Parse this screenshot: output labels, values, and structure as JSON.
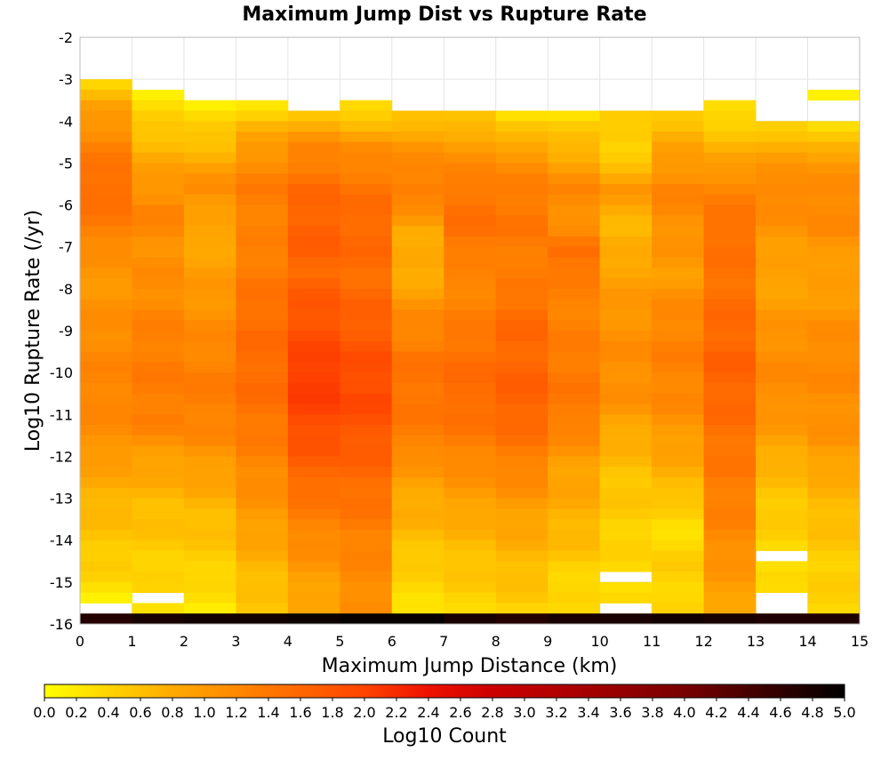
{
  "chart_data": {
    "type": "heatmap",
    "title": "Maximum Jump Dist vs Rupture Rate",
    "xlabel": "Maximum Jump Distance (km)",
    "ylabel": "Log10 Rupture Rate (/yr)",
    "colorbar_label": "Log10 Count",
    "xlim": [
      0,
      15
    ],
    "ylim": [
      -16,
      -2
    ],
    "x_ticks": [
      "0",
      "1",
      "2",
      "3",
      "4",
      "5",
      "6",
      "7",
      "8",
      "9",
      "10",
      "11",
      "12",
      "13",
      "14",
      "15"
    ],
    "y_ticks": [
      "-2",
      "-3",
      "-4",
      "-5",
      "-6",
      "-7",
      "-8",
      "-9",
      "-10",
      "-11",
      "-12",
      "-13",
      "-14",
      "-15",
      "-16"
    ],
    "colorbar_ticks": [
      "0.0",
      "0.2",
      "0.4",
      "0.6",
      "0.8",
      "1.0",
      "1.2",
      "1.4",
      "1.6",
      "1.8",
      "2.0",
      "2.2",
      "2.4",
      "2.6",
      "2.8",
      "3.0",
      "3.2",
      "3.4",
      "3.6",
      "3.8",
      "4.0",
      "4.2",
      "4.4",
      "4.6",
      "4.8",
      "5.0"
    ],
    "color_range": [
      0,
      5
    ],
    "grid": true,
    "x_bin_width": 1,
    "y_bin_height": 0.25,
    "profiles": [
      {
        "x": 0,
        "top": -3.0,
        "bottom": -15.25,
        "shape": [
          [
            -3.0,
            0.45
          ],
          [
            -3.5,
            0.85
          ],
          [
            -4.5,
            1.3
          ],
          [
            -5.5,
            1.55
          ],
          [
            -6.5,
            1.3
          ],
          [
            -7.5,
            1.0
          ],
          [
            -8.5,
            1.1
          ],
          [
            -9.5,
            1.2
          ],
          [
            -10.5,
            1.25
          ],
          [
            -11.5,
            1.1
          ],
          [
            -12.5,
            0.8
          ],
          [
            -13.5,
            0.6
          ],
          [
            -14.5,
            0.45
          ],
          [
            -15.25,
            0.2
          ]
        ]
      },
      {
        "x": 1,
        "top": -3.25,
        "bottom": -15.5,
        "shape": [
          [
            -3.25,
            0.2
          ],
          [
            -4.0,
            0.5
          ],
          [
            -5.0,
            0.9
          ],
          [
            -6.0,
            1.25
          ],
          [
            -7.0,
            1.1
          ],
          [
            -8.0,
            1.15
          ],
          [
            -9.0,
            1.3
          ],
          [
            -10.0,
            1.35
          ],
          [
            -11.0,
            1.3
          ],
          [
            -12.0,
            0.9
          ],
          [
            -13.0,
            0.65
          ],
          [
            -14.0,
            0.5
          ],
          [
            -15.0,
            0.35
          ],
          [
            -15.5,
            0.35
          ]
        ]
      },
      {
        "x": 2,
        "top": -3.5,
        "bottom": -15.75,
        "shape": [
          [
            -3.5,
            0.2
          ],
          [
            -4.5,
            0.65
          ],
          [
            -5.5,
            1.15
          ],
          [
            -6.5,
            0.8
          ],
          [
            -7.5,
            0.95
          ],
          [
            -8.5,
            1.1
          ],
          [
            -9.5,
            1.25
          ],
          [
            -10.5,
            1.35
          ],
          [
            -11.5,
            1.15
          ],
          [
            -12.5,
            0.85
          ],
          [
            -13.5,
            0.6
          ],
          [
            -14.5,
            0.45
          ],
          [
            -15.75,
            0.15
          ]
        ]
      },
      {
        "x": 3,
        "top": -3.5,
        "bottom": -15.75,
        "shape": [
          [
            -3.5,
            0.3
          ],
          [
            -4.5,
            1.0
          ],
          [
            -5.5,
            1.35
          ],
          [
            -6.5,
            1.25
          ],
          [
            -7.5,
            1.35
          ],
          [
            -8.5,
            1.5
          ],
          [
            -9.5,
            1.55
          ],
          [
            -10.5,
            1.5
          ],
          [
            -11.5,
            1.35
          ],
          [
            -12.5,
            1.15
          ],
          [
            -13.5,
            0.95
          ],
          [
            -14.5,
            0.7
          ],
          [
            -15.75,
            0.45
          ]
        ]
      },
      {
        "x": 4,
        "top": -3.75,
        "bottom": -15.75,
        "shape": [
          [
            -3.75,
            0.6
          ],
          [
            -4.5,
            1.2
          ],
          [
            -5.5,
            1.55
          ],
          [
            -6.5,
            1.7
          ],
          [
            -7.5,
            1.6
          ],
          [
            -8.5,
            1.8
          ],
          [
            -9.5,
            2.0
          ],
          [
            -10.0,
            2.1
          ],
          [
            -11.0,
            1.95
          ],
          [
            -12.0,
            1.7
          ],
          [
            -13.0,
            1.4
          ],
          [
            -14.0,
            1.15
          ],
          [
            -15.0,
            0.9
          ],
          [
            -15.75,
            0.75
          ]
        ]
      },
      {
        "x": 5,
        "top": -3.5,
        "bottom": -15.75,
        "shape": [
          [
            -3.5,
            0.3
          ],
          [
            -4.5,
            1.1
          ],
          [
            -5.5,
            1.45
          ],
          [
            -6.5,
            1.6
          ],
          [
            -7.5,
            1.5
          ],
          [
            -8.5,
            1.65
          ],
          [
            -9.5,
            1.85
          ],
          [
            -10.5,
            1.95
          ],
          [
            -11.5,
            1.75
          ],
          [
            -12.5,
            1.55
          ],
          [
            -13.5,
            1.35
          ],
          [
            -14.5,
            1.2
          ],
          [
            -15.75,
            1.1
          ]
        ]
      },
      {
        "x": 6,
        "top": -3.75,
        "bottom": -15.75,
        "shape": [
          [
            -3.75,
            0.55
          ],
          [
            -4.5,
            1.05
          ],
          [
            -5.5,
            1.35
          ],
          [
            -6.5,
            0.85
          ],
          [
            -7.5,
            0.75
          ],
          [
            -8.5,
            1.15
          ],
          [
            -9.5,
            1.4
          ],
          [
            -10.5,
            1.45
          ],
          [
            -11.5,
            1.3
          ],
          [
            -12.5,
            0.9
          ],
          [
            -13.5,
            0.7
          ],
          [
            -14.5,
            0.45
          ],
          [
            -15.75,
            0.25
          ]
        ]
      },
      {
        "x": 7,
        "top": -3.75,
        "bottom": -15.75,
        "shape": [
          [
            -3.75,
            0.5
          ],
          [
            -4.5,
            1.0
          ],
          [
            -5.5,
            1.4
          ],
          [
            -6.5,
            1.5
          ],
          [
            -7.5,
            1.2
          ],
          [
            -8.5,
            1.3
          ],
          [
            -9.5,
            1.5
          ],
          [
            -10.5,
            1.55
          ],
          [
            -11.5,
            1.35
          ],
          [
            -12.5,
            1.05
          ],
          [
            -13.5,
            0.75
          ],
          [
            -14.5,
            0.55
          ],
          [
            -15.75,
            0.35
          ]
        ]
      },
      {
        "x": 8,
        "top": -3.75,
        "bottom": -15.5,
        "shape": [
          [
            -3.75,
            0.25
          ],
          [
            -4.5,
            0.9
          ],
          [
            -5.5,
            1.35
          ],
          [
            -6.5,
            1.4
          ],
          [
            -7.5,
            1.3
          ],
          [
            -8.5,
            1.55
          ],
          [
            -9.5,
            1.6
          ],
          [
            -10.5,
            1.7
          ],
          [
            -11.5,
            1.45
          ],
          [
            -12.5,
            1.15
          ],
          [
            -13.5,
            0.85
          ],
          [
            -14.5,
            0.65
          ],
          [
            -15.5,
            0.45
          ]
        ]
      },
      {
        "x": 9,
        "top": -3.75,
        "bottom": -15.75,
        "shape": [
          [
            -3.75,
            0.3
          ],
          [
            -4.5,
            0.7
          ],
          [
            -5.5,
            1.2
          ],
          [
            -6.5,
            1.1
          ],
          [
            -7.0,
            1.55
          ],
          [
            -8.0,
            1.25
          ],
          [
            -9.0,
            1.3
          ],
          [
            -10.0,
            1.4
          ],
          [
            -11.0,
            1.35
          ],
          [
            -12.0,
            0.95
          ],
          [
            -13.0,
            0.8
          ],
          [
            -14.0,
            0.6
          ],
          [
            -15.0,
            0.35
          ],
          [
            -15.75,
            0.35
          ]
        ]
      },
      {
        "x": 10,
        "top": -3.75,
        "bottom": -15.75,
        "shape": [
          [
            -3.75,
            0.55
          ],
          [
            -4.5,
            0.35
          ],
          [
            -5.5,
            1.0
          ],
          [
            -6.5,
            0.65
          ],
          [
            -7.5,
            0.9
          ],
          [
            -8.5,
            1.05
          ],
          [
            -9.5,
            1.15
          ],
          [
            -10.5,
            1.1
          ],
          [
            -11.5,
            0.75
          ],
          [
            -12.5,
            0.55
          ],
          [
            -13.5,
            0.45
          ],
          [
            -14.5,
            0.35
          ],
          [
            -15.75,
            0.3
          ]
        ]
      },
      {
        "x": 11,
        "top": -3.75,
        "bottom": -15.75,
        "shape": [
          [
            -3.75,
            0.55
          ],
          [
            -4.5,
            0.85
          ],
          [
            -5.5,
            1.25
          ],
          [
            -6.5,
            1.1
          ],
          [
            -7.5,
            0.95
          ],
          [
            -8.5,
            1.2
          ],
          [
            -9.5,
            1.3
          ],
          [
            -10.5,
            1.2
          ],
          [
            -11.5,
            0.95
          ],
          [
            -12.5,
            0.7
          ],
          [
            -13.5,
            0.3
          ],
          [
            -14.5,
            0.45
          ],
          [
            -15.75,
            0.35
          ]
        ]
      },
      {
        "x": 12,
        "top": -3.5,
        "bottom": -15.5,
        "shape": [
          [
            -3.5,
            0.25
          ],
          [
            -4.5,
            0.7
          ],
          [
            -5.5,
            1.25
          ],
          [
            -6.5,
            1.5
          ],
          [
            -7.5,
            1.45
          ],
          [
            -8.5,
            1.55
          ],
          [
            -9.5,
            1.65
          ],
          [
            -10.5,
            1.6
          ],
          [
            -11.5,
            1.45
          ],
          [
            -12.5,
            1.35
          ],
          [
            -13.5,
            1.25
          ],
          [
            -14.5,
            1.05
          ],
          [
            -15.5,
            0.85
          ]
        ]
      },
      {
        "x": 13,
        "top": -4.0,
        "bottom": -15.75,
        "shape": [
          [
            -4.0,
            0.45
          ],
          [
            -4.5,
            0.8
          ],
          [
            -5.5,
            1.25
          ],
          [
            -6.5,
            1.05
          ],
          [
            -7.5,
            0.85
          ],
          [
            -8.5,
            1.0
          ],
          [
            -9.5,
            1.15
          ],
          [
            -10.5,
            1.15
          ],
          [
            -11.5,
            0.9
          ],
          [
            -12.5,
            0.6
          ],
          [
            -13.5,
            0.45
          ],
          [
            -14.5,
            0.3
          ],
          [
            -15.75,
            0.3
          ]
        ]
      },
      {
        "x": 14,
        "top": -3.25,
        "bottom": -15.75,
        "shape": [
          [
            -3.25,
            0.2
          ],
          [
            -4.0,
            0.25
          ],
          [
            -4.5,
            0.8
          ],
          [
            -5.5,
            1.2
          ],
          [
            -6.5,
            1.15
          ],
          [
            -7.5,
            0.9
          ],
          [
            -8.5,
            1.05
          ],
          [
            -9.5,
            1.2
          ],
          [
            -10.5,
            1.15
          ],
          [
            -11.5,
            1.05
          ],
          [
            -12.5,
            0.75
          ],
          [
            -13.5,
            0.6
          ],
          [
            -14.5,
            0.45
          ],
          [
            -15.75,
            0.4
          ]
        ]
      }
    ],
    "gaps": [
      {
        "x": 1,
        "y": -15.25
      },
      {
        "x": 8,
        "y": -15.75
      },
      {
        "x": 10,
        "y": -14.75
      },
      {
        "x": 10,
        "y": -15.5
      },
      {
        "x": 13,
        "y": -14.25
      },
      {
        "x": 13,
        "y": -15.25
      },
      {
        "x": 13,
        "y": -15.5
      },
      {
        "x": 14,
        "y": -3.5
      },
      {
        "x": 14,
        "y": -3.75
      }
    ],
    "bottom_row": {
      "y": -16.0,
      "values": [
        4.7,
        4.8,
        4.85,
        4.85,
        4.9,
        4.95,
        4.95,
        4.8,
        4.7,
        4.8,
        4.8,
        4.85,
        4.8,
        4.75,
        4.75
      ]
    },
    "colormap_stops": [
      [
        0.0,
        "#ffff00"
      ],
      [
        0.4,
        "#ffd400"
      ],
      [
        0.8,
        "#ffaa00"
      ],
      [
        1.2,
        "#ff8800"
      ],
      [
        1.6,
        "#ff6600"
      ],
      [
        2.0,
        "#ff4400"
      ],
      [
        2.4,
        "#ee1100"
      ],
      [
        2.8,
        "#cc0000"
      ],
      [
        3.4,
        "#a50000"
      ],
      [
        4.0,
        "#780000"
      ],
      [
        4.5,
        "#3c0000"
      ],
      [
        5.0,
        "#000000"
      ]
    ]
  }
}
